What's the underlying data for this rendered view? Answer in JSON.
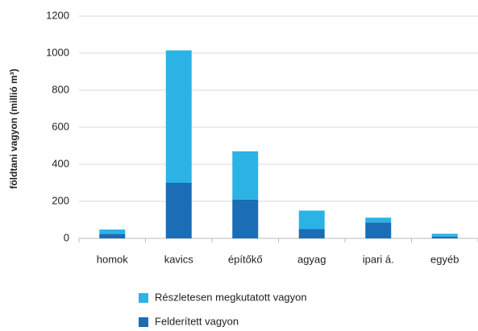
{
  "chart_data": {
    "type": "stacked_bar",
    "ylabel": "földtani vagyon (millió m³)",
    "categories": [
      "homok",
      "kavics",
      "építőkő",
      "agyag",
      "ipari á.",
      "egyéb"
    ],
    "series": [
      {
        "name": "Részletesen megkutatott vagyon",
        "color": "#2bb3e6",
        "values": [
          23,
          715,
          260,
          100,
          27,
          15
        ]
      },
      {
        "name": "Felderített vagyon",
        "color": "#1b6db5",
        "values": [
          25,
          300,
          210,
          50,
          85,
          10
        ]
      }
    ],
    "ylim": [
      0,
      1200
    ],
    "yticks": [
      0,
      200,
      400,
      600,
      800,
      1000,
      1200
    ],
    "grid": true,
    "legend": "bottom"
  }
}
